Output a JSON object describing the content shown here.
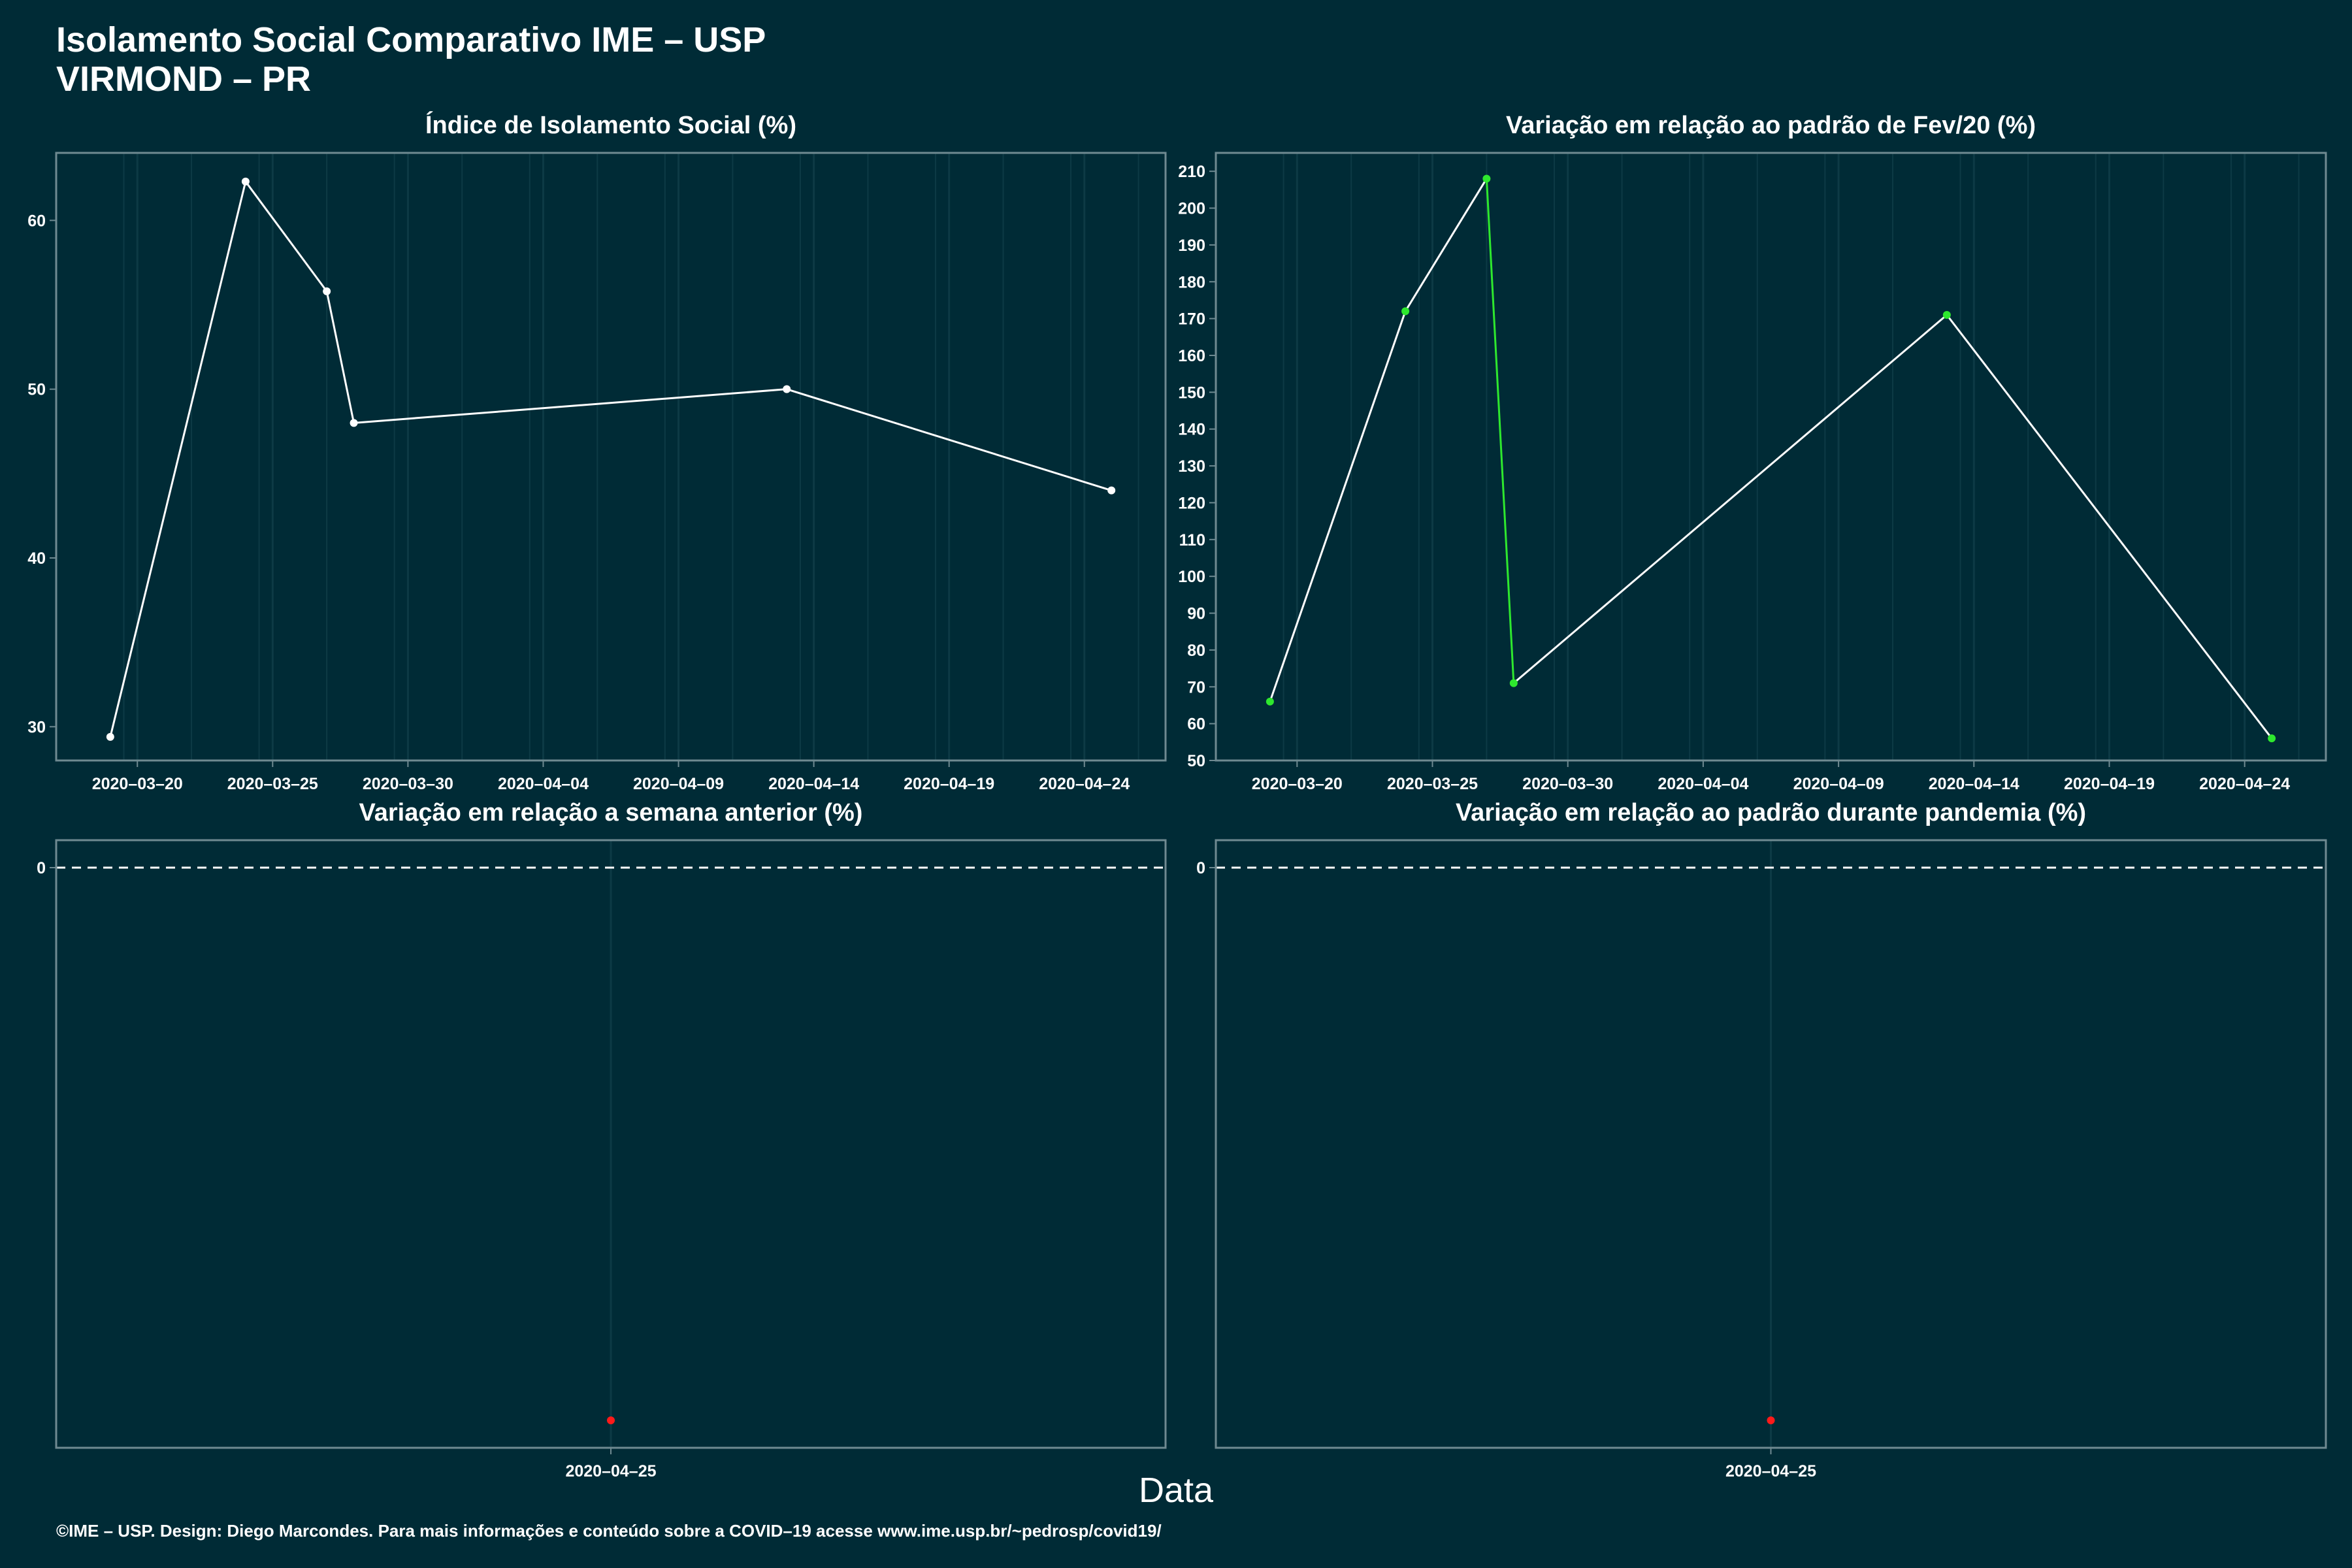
{
  "page": {
    "title_line1": "Isolamento Social Comparativo IME – USP",
    "title_line2": "VIRMOND – PR",
    "x_axis_label": "Data",
    "caption": "©IME – USP. Design: Diego Marcondes. Para mais informações e conteúdo sobre a COVID–19 acesse www.ime.usp.br/~pedrosp/covid19/"
  },
  "colors": {
    "background": "#002b36",
    "panel_border": "#6f8a91",
    "grid": "#0d3a45",
    "text": "#ffffff",
    "line": "#ffffff",
    "increase": "#2ee82e",
    "decrease": "#ff1a1a"
  },
  "chart_data": [
    {
      "id": "isolation-index",
      "type": "line",
      "title": "Índice de Isolamento Social (%)",
      "x": [
        "2020-03-19",
        "2020-03-24",
        "2020-03-27",
        "2020-03-28",
        "2020-04-13",
        "2020-04-25"
      ],
      "values": [
        29.4,
        62.3,
        55.8,
        48.0,
        50.0,
        44.0
      ],
      "xlim": [
        "2020-03-17",
        "2020-04-27"
      ],
      "ylim": [
        28,
        64
      ],
      "y_ticks": [
        30,
        40,
        50,
        60
      ],
      "x_ticks": [
        "2020-03-20",
        "2020-03-25",
        "2020-03-30",
        "2020-04-04",
        "2020-04-09",
        "2020-04-14",
        "2020-04-19",
        "2020-04-24"
      ],
      "point_color": "#ffffff",
      "grid": true
    },
    {
      "id": "variation-feb",
      "type": "line",
      "title": "Variação em relação ao padrão de Fev/20 (%)",
      "x": [
        "2020-03-19",
        "2020-03-24",
        "2020-03-27",
        "2020-03-28",
        "2020-04-13",
        "2020-04-25"
      ],
      "values": [
        66,
        172,
        208,
        71,
        171,
        56
      ],
      "point_colors": [
        "#2ee82e",
        "#2ee82e",
        "#2ee82e",
        "#2ee82e",
        "#2ee82e",
        "#2ee82e"
      ],
      "segment_colors": [
        "#ffffff",
        "#ffffff",
        "#2ee82e",
        "#ffffff",
        "#ffffff"
      ],
      "xlim": [
        "2020-03-17",
        "2020-04-27"
      ],
      "ylim": [
        50,
        215
      ],
      "y_ticks": [
        50,
        60,
        70,
        80,
        90,
        100,
        110,
        120,
        130,
        140,
        150,
        160,
        170,
        180,
        190,
        200,
        210
      ],
      "x_ticks": [
        "2020-03-20",
        "2020-03-25",
        "2020-03-30",
        "2020-04-04",
        "2020-04-09",
        "2020-04-14",
        "2020-04-19",
        "2020-04-24"
      ],
      "grid": true
    },
    {
      "id": "variation-week",
      "type": "scatter",
      "title": "Variação em relação a semana anterior (%)",
      "x": [
        "2020-04-25"
      ],
      "values": [
        null
      ],
      "point_color": "#ff1a1a",
      "y_ticks": [
        0
      ],
      "x_ticks": [
        "2020-04-25"
      ],
      "reference_line": 0,
      "grid": true
    },
    {
      "id": "variation-pandemic",
      "type": "scatter",
      "title": "Variação em relação ao padrão durante pandemia (%)",
      "x": [
        "2020-04-25"
      ],
      "values": [
        null
      ],
      "point_color": "#ff1a1a",
      "y_ticks": [
        0
      ],
      "x_ticks": [
        "2020-04-25"
      ],
      "reference_line": 0,
      "grid": true
    }
  ]
}
